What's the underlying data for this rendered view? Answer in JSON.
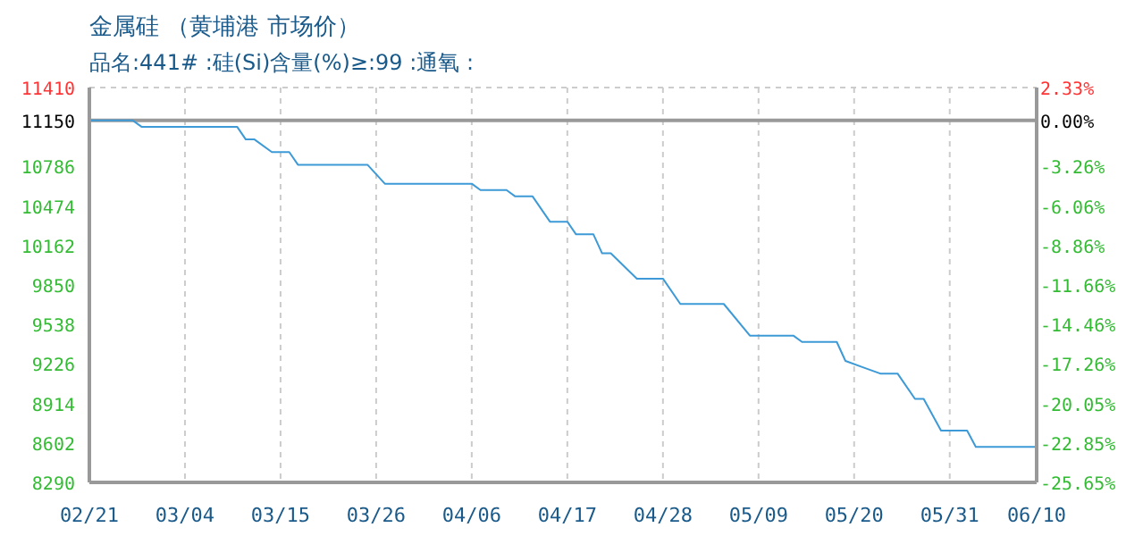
{
  "chart_data": {
    "type": "line",
    "title": "金属硅 （黄埔港 市场价）",
    "subtitle": "品名:441# :硅(Si)含量(%)≥:99 :通氧 :",
    "x": [
      "--02-21",
      "--02-26",
      "--02-27",
      "--03-10",
      "--03-11",
      "--03-12",
      "--03-14",
      "--03-16",
      "--03-17",
      "--03-25",
      "--03-27",
      "--04-06",
      "--04-07",
      "--04-10",
      "--04-11",
      "--04-13",
      "--04-15",
      "--04-17",
      "--04-18",
      "--04-20",
      "--04-21",
      "--04-22",
      "--04-25",
      "--04-28",
      "--04-30",
      "--05-05",
      "--05-08",
      "--05-13",
      "--05-14",
      "--05-18",
      "--05-19",
      "--05-21",
      "--05-23",
      "--05-25",
      "--05-27",
      "--05-28",
      "--05-30",
      "--06-02",
      "--06-03",
      "--06-10"
    ],
    "series": [
      {
        "color": "#3d9ad6",
        "values": [
          11150,
          11150,
          11100,
          11100,
          11000,
          11000,
          10900,
          10900,
          10800,
          10800,
          10650,
          10650,
          10600,
          10600,
          10550,
          10550,
          10350,
          10350,
          10250,
          10250,
          10100,
          10100,
          9900,
          9900,
          9700,
          9700,
          9450,
          9450,
          9400,
          9400,
          9250,
          9200,
          9150,
          9150,
          8950,
          8950,
          8700,
          8700,
          8570,
          8570
        ]
      }
    ],
    "xlim": [
      "--02-21",
      "--06-10"
    ],
    "xticks": [
      {
        "value": "--02-21",
        "label": "02/21"
      },
      {
        "value": "--03-04",
        "label": "03/04"
      },
      {
        "value": "--03-15",
        "label": "03/15"
      },
      {
        "value": "--03-26",
        "label": "03/26"
      },
      {
        "value": "--04-06",
        "label": "04/06"
      },
      {
        "value": "--04-17",
        "label": "04/17"
      },
      {
        "value": "--04-28",
        "label": "04/28"
      },
      {
        "value": "--05-09",
        "label": "05/09"
      },
      {
        "value": "--05-20",
        "label": "05/20"
      },
      {
        "value": "--05-31",
        "label": "05/31"
      },
      {
        "value": "--06-10",
        "label": "06/10"
      }
    ],
    "ylim": [
      8290,
      11410
    ],
    "yticks": [
      8290,
      8602,
      8914,
      9226,
      9538,
      9850,
      10162,
      10474,
      10786,
      11150,
      11410
    ],
    "y2lim": [
      -25.65,
      2.33
    ],
    "y2ticks": [
      {
        "value": -25.65,
        "label": "-25.65%"
      },
      {
        "value": -22.85,
        "label": "-22.85%"
      },
      {
        "value": -20.05,
        "label": "-20.05%"
      },
      {
        "value": -17.26,
        "label": "-17.26%"
      },
      {
        "value": -14.46,
        "label": "-14.46%"
      },
      {
        "value": -11.66,
        "label": "-11.66%"
      },
      {
        "value": -8.86,
        "label": "-8.86%"
      },
      {
        "value": -6.06,
        "label": "-6.06%"
      },
      {
        "value": -3.26,
        "label": "-3.26%"
      },
      {
        "value": 0,
        "label": "0.00%"
      },
      {
        "value": 2.33,
        "label": "2.33%"
      }
    ],
    "ref_lines": [
      {
        "axis": "y",
        "value": 11150,
        "color": "#999999"
      }
    ],
    "grid": true,
    "legend": false,
    "marker": "none",
    "line_style": "solid"
  }
}
